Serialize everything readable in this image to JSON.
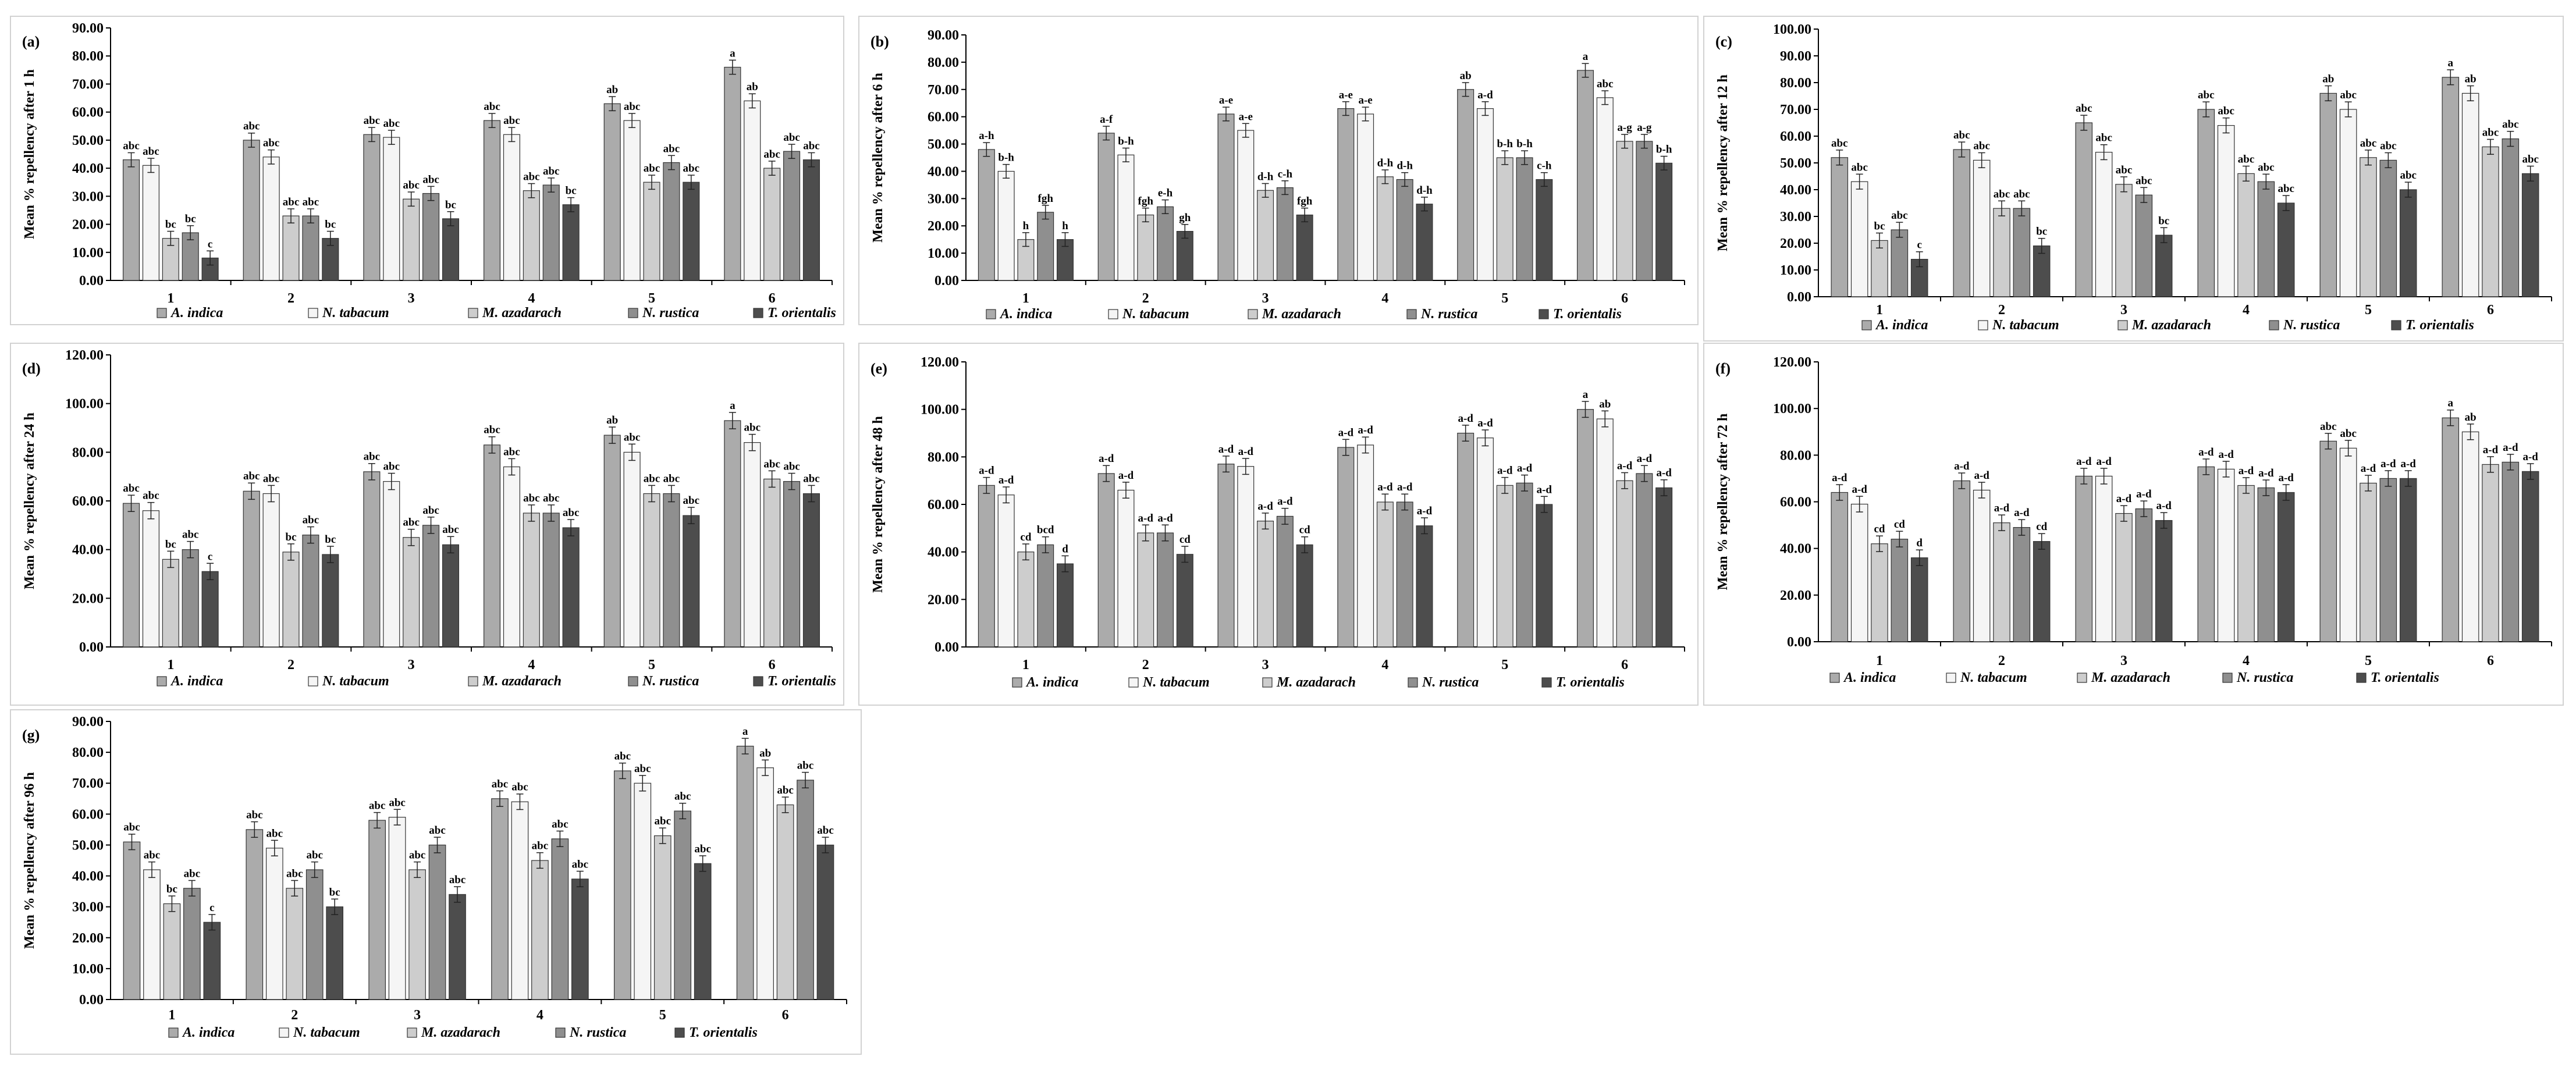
{
  "series_names": [
    "A. indica",
    "N. tabacum",
    "M. azadarach",
    "N. rustica",
    "T. orientalis"
  ],
  "series_colors": [
    "#ababab",
    "#f5f5f5",
    "#cdcdcd",
    "#8f8f8f",
    "#4d4d4d"
  ],
  "chart_data": [
    {
      "type": "bar",
      "panel_label": "(a)",
      "ylabel": "Mean % repellency after 1 h",
      "categories": [
        "1",
        "2",
        "3",
        "4",
        "5",
        "6"
      ],
      "ylim": [
        0,
        90
      ],
      "ystep": 10,
      "ticks": [
        "0.00",
        "10.00",
        "20.00",
        "30.00",
        "40.00",
        "50.00",
        "60.00",
        "70.00",
        "80.00",
        "90.00"
      ],
      "series": [
        {
          "name": "A. indica",
          "values": [
            43,
            50,
            52,
            57,
            63,
            76
          ],
          "labels": [
            "abc",
            "abc",
            "abc",
            "abc",
            "ab",
            "a"
          ]
        },
        {
          "name": "N. tabacum",
          "values": [
            41,
            44,
            51,
            52,
            57,
            64
          ],
          "labels": [
            "abc",
            "abc",
            "abc",
            "abc",
            "abc",
            "ab"
          ]
        },
        {
          "name": "M. azadarach",
          "values": [
            15,
            23,
            29,
            32,
            35,
            40
          ],
          "labels": [
            "bc",
            "abc",
            "abc",
            "abc",
            "abc",
            "abc"
          ]
        },
        {
          "name": "N. rustica",
          "values": [
            17,
            23,
            31,
            34,
            42,
            46
          ],
          "labels": [
            "bc",
            "abc",
            "abc",
            "abc",
            "abc",
            "abc"
          ]
        },
        {
          "name": "T. orientalis",
          "values": [
            8,
            15,
            22,
            27,
            35,
            43
          ],
          "labels": [
            "c",
            "bc",
            "bc",
            "bc",
            "abc",
            "abc"
          ]
        }
      ]
    },
    {
      "type": "bar",
      "panel_label": "(b)",
      "ylabel": "Mean % repellency after 6 h",
      "categories": [
        "1",
        "2",
        "3",
        "4",
        "5",
        "6"
      ],
      "ylim": [
        0,
        90
      ],
      "ystep": 10,
      "ticks": [
        "0.00",
        "10.00",
        "20.00",
        "30.00",
        "40.00",
        "50.00",
        "60.00",
        "70.00",
        "80.00",
        "90.00"
      ],
      "series": [
        {
          "name": "A. indica",
          "values": [
            48,
            54,
            61,
            63,
            70,
            77
          ],
          "labels": [
            "a-h",
            "a-f",
            "a-e",
            "a-e",
            "ab",
            "a"
          ]
        },
        {
          "name": "N. tabacum",
          "values": [
            40,
            46,
            55,
            61,
            63,
            67
          ],
          "labels": [
            "b-h",
            "b-h",
            "a-e",
            "a-e",
            "a-d",
            "abc"
          ]
        },
        {
          "name": "M. azadarach",
          "values": [
            15,
            24,
            33,
            38,
            45,
            51
          ],
          "labels": [
            "h",
            "fgh",
            "d-h",
            "d-h",
            "b-h",
            "a-g"
          ]
        },
        {
          "name": "N. rustica",
          "values": [
            25,
            27,
            34,
            37,
            45,
            51
          ],
          "labels": [
            "fgh",
            "e-h",
            "c-h",
            "d-h",
            "b-h",
            "a-g"
          ]
        },
        {
          "name": "T. orientalis",
          "values": [
            15,
            18,
            24,
            28,
            37,
            43
          ],
          "labels": [
            "h",
            "gh",
            "fgh",
            "d-h",
            "c-h",
            "b-h"
          ]
        }
      ]
    },
    {
      "type": "bar",
      "panel_label": "(c)",
      "ylabel": "Mean % repellency after 12 h",
      "categories": [
        "1",
        "2",
        "3",
        "4",
        "5",
        "6"
      ],
      "ylim": [
        0,
        100
      ],
      "ystep": 10,
      "ticks": [
        "0.00",
        "10.00",
        "20.00",
        "30.00",
        "40.00",
        "50.00",
        "60.00",
        "70.00",
        "80.00",
        "90.00",
        "100.00"
      ],
      "series": [
        {
          "name": "A. indica",
          "values": [
            52,
            55,
            65,
            70,
            76,
            82
          ],
          "labels": [
            "abc",
            "abc",
            "abc",
            "abc",
            "ab",
            "a"
          ]
        },
        {
          "name": "N. tabacum",
          "values": [
            43,
            51,
            54,
            64,
            70,
            76
          ],
          "labels": [
            "abc",
            "abc",
            "abc",
            "abc",
            "abc",
            "ab"
          ]
        },
        {
          "name": "M. azadarach",
          "values": [
            21,
            33,
            42,
            46,
            52,
            56
          ],
          "labels": [
            "bc",
            "abc",
            "abc",
            "abc",
            "abc",
            "abc"
          ]
        },
        {
          "name": "N. rustica",
          "values": [
            25,
            33,
            38,
            43,
            51,
            59
          ],
          "labels": [
            "abc",
            "abc",
            "abc",
            "abc",
            "abc",
            "abc"
          ]
        },
        {
          "name": "T. orientalis",
          "values": [
            14,
            19,
            23,
            35,
            40,
            46
          ],
          "labels": [
            "c",
            "bc",
            "bc",
            "abc",
            "abc",
            "abc"
          ]
        }
      ]
    },
    {
      "type": "bar",
      "panel_label": "(d)",
      "ylabel": "Mean % repellency after 24 h",
      "categories": [
        "1",
        "2",
        "3",
        "4",
        "5",
        "6"
      ],
      "ylim": [
        0,
        120
      ],
      "ystep": 20,
      "ticks": [
        "0.00",
        "20.00",
        "40.00",
        "60.00",
        "80.00",
        "100.00",
        "120.00"
      ],
      "series": [
        {
          "name": "A. indica",
          "values": [
            59,
            64,
            72,
            83,
            87,
            93
          ],
          "labels": [
            "abc",
            "abc",
            "abc",
            "abc",
            "ab",
            "a"
          ]
        },
        {
          "name": "N. tabacum",
          "values": [
            56,
            63,
            68,
            74,
            80,
            84
          ],
          "labels": [
            "abc",
            "abc",
            "abc",
            "abc",
            "abc",
            "abc"
          ]
        },
        {
          "name": "M. azadarach",
          "values": [
            36,
            39,
            45,
            55,
            63,
            69
          ],
          "labels": [
            "bc",
            "bc",
            "abc",
            "abc",
            "abc",
            "abc"
          ]
        },
        {
          "name": "N. rustica",
          "values": [
            40,
            46,
            50,
            55,
            63,
            68
          ],
          "labels": [
            "abc",
            "abc",
            "abc",
            "abc",
            "abc",
            "abc"
          ]
        },
        {
          "name": "T. orientalis",
          "values": [
            31,
            38,
            42,
            49,
            54,
            63
          ],
          "labels": [
            "c",
            "bc",
            "abc",
            "abc",
            "abc",
            "abc"
          ]
        }
      ]
    },
    {
      "type": "bar",
      "panel_label": "(e)",
      "ylabel": "Mean % repellency after 48 h",
      "categories": [
        "1",
        "2",
        "3",
        "4",
        "5",
        "6"
      ],
      "ylim": [
        0,
        120
      ],
      "ystep": 20,
      "ticks": [
        "0.00",
        "20.00",
        "40.00",
        "60.00",
        "80.00",
        "100.00",
        "120.00"
      ],
      "series": [
        {
          "name": "A. indica",
          "values": [
            68,
            73,
            77,
            84,
            90,
            100
          ],
          "labels": [
            "a-d",
            "a-d",
            "a-d",
            "a-d",
            "a-d",
            "a"
          ]
        },
        {
          "name": "N. tabacum",
          "values": [
            64,
            66,
            76,
            85,
            88,
            96
          ],
          "labels": [
            "a-d",
            "a-d",
            "a-d",
            "a-d",
            "a-d",
            "ab"
          ]
        },
        {
          "name": "M. azadarach",
          "values": [
            40,
            48,
            53,
            61,
            68,
            70
          ],
          "labels": [
            "cd",
            "a-d",
            "a-d",
            "a-d",
            "a-d",
            "a-d"
          ]
        },
        {
          "name": "N. rustica",
          "values": [
            43,
            48,
            55,
            61,
            69,
            73
          ],
          "labels": [
            "bcd",
            "a-d",
            "a-d",
            "a-d",
            "a-d",
            "a-d"
          ]
        },
        {
          "name": "T. orientalis",
          "values": [
            35,
            39,
            43,
            51,
            60,
            67
          ],
          "labels": [
            "d",
            "cd",
            "cd",
            "a-d",
            "a-d",
            "a-d"
          ]
        }
      ]
    },
    {
      "type": "bar",
      "panel_label": "(f)",
      "ylabel": "Mean % repellency after 72 h",
      "categories": [
        "1",
        "2",
        "3",
        "4",
        "5",
        "6"
      ],
      "ylim": [
        0,
        120
      ],
      "ystep": 20,
      "ticks": [
        "0.00",
        "20.00",
        "40.00",
        "60.00",
        "80.00",
        "100.00",
        "120.00"
      ],
      "series": [
        {
          "name": "A. indica",
          "values": [
            64,
            69,
            71,
            75,
            86,
            96
          ],
          "labels": [
            "a-d",
            "a-d",
            "a-d",
            "a-d",
            "abc",
            "a"
          ]
        },
        {
          "name": "N. tabacum",
          "values": [
            59,
            65,
            71,
            74,
            83,
            90
          ],
          "labels": [
            "a-d",
            "a-d",
            "a-d",
            "a-d",
            "abc",
            "ab"
          ]
        },
        {
          "name": "M. azadarach",
          "values": [
            42,
            51,
            55,
            67,
            68,
            76
          ],
          "labels": [
            "cd",
            "a-d",
            "a-d",
            "a-d",
            "a-d",
            "a-d"
          ]
        },
        {
          "name": "N. rustica",
          "values": [
            44,
            49,
            57,
            66,
            70,
            77
          ],
          "labels": [
            "cd",
            "a-d",
            "a-d",
            "a-d",
            "a-d",
            "a-d"
          ]
        },
        {
          "name": "T. orientalis",
          "values": [
            36,
            43,
            52,
            64,
            70,
            73
          ],
          "labels": [
            "d",
            "cd",
            "a-d",
            "a-d",
            "a-d",
            "a-d"
          ]
        }
      ]
    },
    {
      "type": "bar",
      "panel_label": "(g)",
      "ylabel": "Mean % repellency after 96 h",
      "categories": [
        "1",
        "2",
        "3",
        "4",
        "5",
        "6"
      ],
      "ylim": [
        0,
        90
      ],
      "ystep": 10,
      "ticks": [
        "0.00",
        "10.00",
        "20.00",
        "30.00",
        "40.00",
        "50.00",
        "60.00",
        "70.00",
        "80.00",
        "90.00"
      ],
      "series": [
        {
          "name": "A. indica",
          "values": [
            51,
            55,
            58,
            65,
            74,
            82
          ],
          "labels": [
            "abc",
            "abc",
            "abc",
            "abc",
            "abc",
            "a"
          ]
        },
        {
          "name": "N. tabacum",
          "values": [
            42,
            49,
            59,
            64,
            70,
            75
          ],
          "labels": [
            "abc",
            "abc",
            "abc",
            "abc",
            "abc",
            "ab"
          ]
        },
        {
          "name": "M. azadarach",
          "values": [
            31,
            36,
            42,
            45,
            53,
            63
          ],
          "labels": [
            "bc",
            "abc",
            "abc",
            "abc",
            "abc",
            "abc"
          ]
        },
        {
          "name": "N. rustica",
          "values": [
            36,
            42,
            50,
            52,
            61,
            71
          ],
          "labels": [
            "abc",
            "abc",
            "abc",
            "abc",
            "abc",
            "abc"
          ]
        },
        {
          "name": "T. orientalis",
          "values": [
            25,
            30,
            34,
            39,
            44,
            50
          ],
          "labels": [
            "c",
            "bc",
            "abc",
            "abc",
            "abc",
            "abc"
          ]
        }
      ]
    }
  ]
}
